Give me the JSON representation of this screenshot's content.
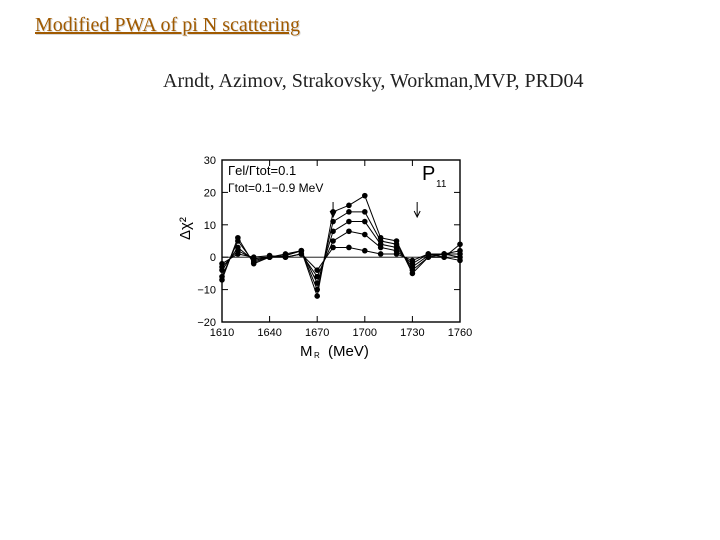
{
  "slide": {
    "title": "Modified PWA of pi N scattering",
    "citation": "Arndt, Azimov, Strakovsky, Workman,MVP, PRD04"
  },
  "chart_data": {
    "type": "line",
    "panel_label": "P",
    "panel_label_sub": "11",
    "annotation_line1": "Γel/Γtot=0.1",
    "annotation_line2": "Γtot=0.1−0.9 MeV",
    "xlabel": "M",
    "xlabel_sub": "R",
    "xlabel_unit": "(MeV)",
    "ylabel": "Δχ²",
    "xlim": [
      1610,
      1760
    ],
    "ylim": [
      -20,
      30
    ],
    "x_ticks": [
      1610,
      1640,
      1670,
      1700,
      1730,
      1760
    ],
    "y_ticks": [
      -20,
      -10,
      0,
      10,
      20,
      30
    ],
    "x_tick_labels": [
      "1610",
      "1640",
      "1670",
      "1700",
      "1730",
      "1760"
    ],
    "y_tick_labels": [
      "−20",
      "−10",
      "0",
      "10",
      "20",
      "30"
    ],
    "arrows_x": [
      1680,
      1733
    ],
    "x": [
      1610,
      1620,
      1630,
      1640,
      1650,
      1660,
      1670,
      1680,
      1690,
      1700,
      1710,
      1720,
      1730,
      1740,
      1750,
      1760
    ],
    "series": [
      {
        "values": [
          -7,
          6,
          -2,
          0,
          1,
          2,
          -12,
          14,
          16,
          19,
          6,
          5,
          -5,
          0,
          0,
          4
        ]
      },
      {
        "values": [
          -6,
          5,
          -1.5,
          0,
          0.5,
          2,
          -10,
          11,
          14,
          14,
          5,
          4,
          -4,
          0,
          1,
          2
        ]
      },
      {
        "values": [
          -4,
          3,
          -1,
          0,
          0.5,
          2,
          -8,
          8,
          11,
          11,
          4,
          3,
          -3,
          0.5,
          1,
          1
        ]
      },
      {
        "values": [
          -3,
          2,
          -0.5,
          0,
          0,
          1,
          -6,
          5,
          8,
          7,
          3,
          2,
          -2,
          1,
          1,
          0
        ]
      },
      {
        "values": [
          -2,
          1,
          0,
          0.5,
          0,
          1,
          -4,
          3,
          3,
          2,
          1,
          1,
          -1,
          1,
          0,
          -1
        ]
      }
    ]
  }
}
